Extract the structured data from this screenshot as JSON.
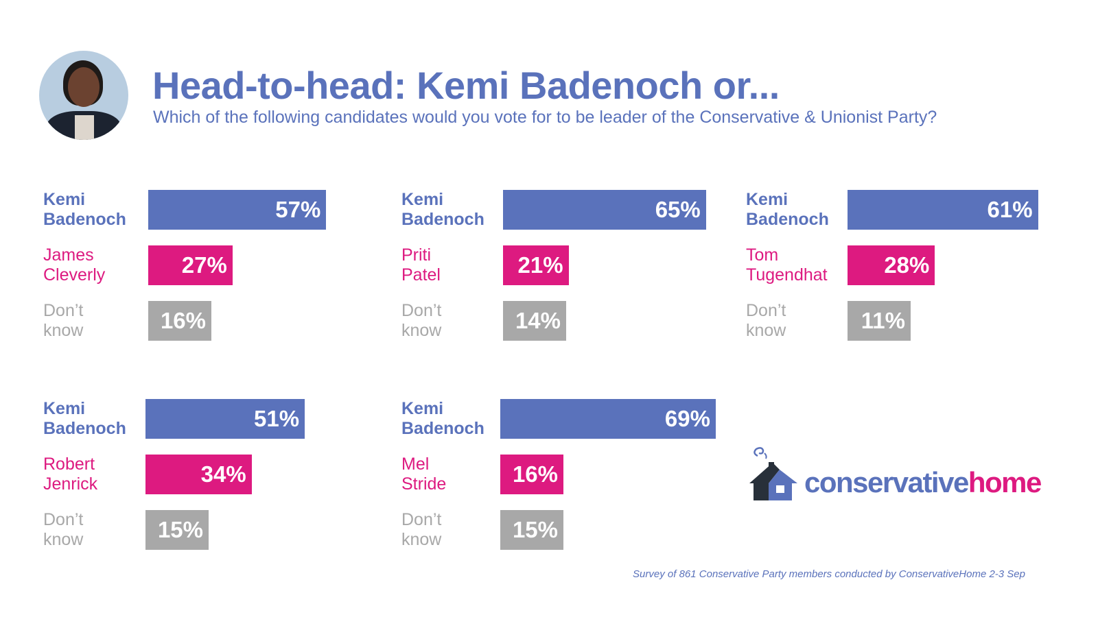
{
  "header": {
    "title": "Head-to-head: Kemi Badenoch or...",
    "subtitle": "Which of the following candidates would you vote for to be leader of the Conservative & Unionist Party?"
  },
  "colors": {
    "kemi": "#5a72bb",
    "opponent": "#dd1a80",
    "dont_know": "#a8a8a8",
    "label_dk": "#a8a8a8"
  },
  "chart_data": {
    "type": "bar",
    "title": "Head-to-head: Kemi Badenoch or...",
    "unit": "%",
    "panels": [
      {
        "rows": [
          {
            "label": [
              "Kemi",
              "Badenoch"
            ],
            "value": 57,
            "kind": "kemi"
          },
          {
            "label": [
              "James",
              "Cleverly"
            ],
            "value": 27,
            "kind": "opponent"
          },
          {
            "label": [
              "Don’t",
              "know"
            ],
            "value": 16,
            "kind": "dont_know"
          }
        ]
      },
      {
        "rows": [
          {
            "label": [
              "Kemi",
              "Badenoch"
            ],
            "value": 65,
            "kind": "kemi"
          },
          {
            "label": [
              "Priti",
              "Patel"
            ],
            "value": 21,
            "kind": "opponent"
          },
          {
            "label": [
              "Don’t",
              "know"
            ],
            "value": 14,
            "kind": "dont_know"
          }
        ]
      },
      {
        "rows": [
          {
            "label": [
              "Kemi",
              "Badenoch"
            ],
            "value": 61,
            "kind": "kemi"
          },
          {
            "label": [
              "Tom",
              "Tugendhat"
            ],
            "value": 28,
            "kind": "opponent"
          },
          {
            "label": [
              "Don’t",
              "know"
            ],
            "value": 11,
            "kind": "dont_know"
          }
        ]
      },
      {
        "rows": [
          {
            "label": [
              "Kemi",
              "Badenoch"
            ],
            "value": 51,
            "kind": "kemi"
          },
          {
            "label": [
              "Robert",
              "Jenrick"
            ],
            "value": 34,
            "kind": "opponent"
          },
          {
            "label": [
              "Don’t",
              "know"
            ],
            "value": 15,
            "kind": "dont_know"
          }
        ]
      },
      {
        "rows": [
          {
            "label": [
              "Kemi",
              "Badenoch"
            ],
            "value": 69,
            "kind": "kemi"
          },
          {
            "label": [
              "Mel",
              "Stride"
            ],
            "value": 16,
            "kind": "opponent"
          },
          {
            "label": [
              "Don’t",
              "know"
            ],
            "value": 15,
            "kind": "dont_know"
          }
        ]
      }
    ]
  },
  "logo": {
    "part1": "conservative",
    "part2": "home"
  },
  "footer": "Survey of 861 Conservative Party members conducted by ConservativeHome 2-3 Sep"
}
